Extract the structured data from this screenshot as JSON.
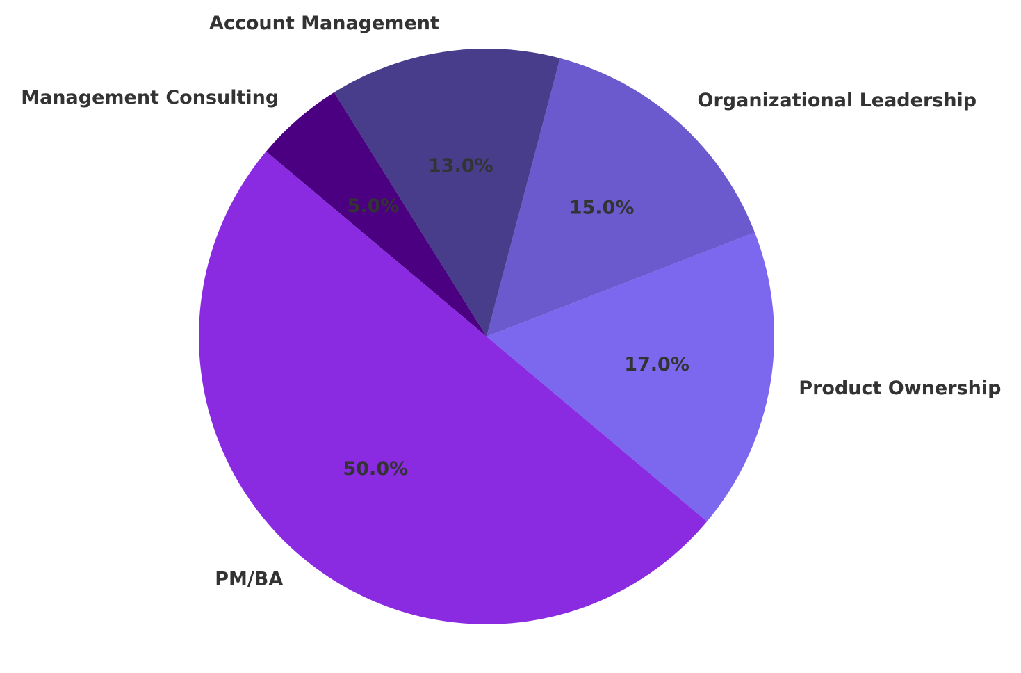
{
  "chart_data": {
    "type": "pie",
    "slices": [
      {
        "label": "Product Ownership",
        "value": 17.0,
        "pct_label": "17.0%",
        "color": "#7B68EE"
      },
      {
        "label": "Organizational Leadership",
        "value": 15.0,
        "pct_label": "15.0%",
        "color": "#6A5ACD"
      },
      {
        "label": "Account Management",
        "value": 13.0,
        "pct_label": "13.0%",
        "color": "#483D8B"
      },
      {
        "label": "Management Consulting",
        "value": 5.0,
        "pct_label": "5.0%",
        "color": "#4B0082"
      },
      {
        "label": "PM/BA",
        "value": 50.0,
        "pct_label": "50.0%",
        "color": "#8A2BE2"
      }
    ],
    "start_angle_deg": -40,
    "direction": "counterclockwise",
    "legend": "none",
    "title": ""
  }
}
